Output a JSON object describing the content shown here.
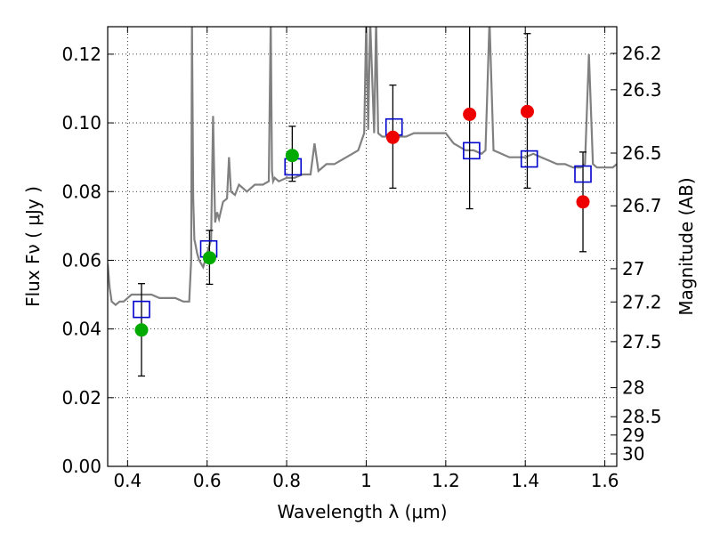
{
  "chart_data": {
    "type": "scatter",
    "xlabel": "Wavelength  λ (μm)",
    "ylabel": "Flux  Fν  ( μJy )",
    "y2label": "Magnitude (AB)",
    "xlim": [
      0.35,
      1.63
    ],
    "ylim": [
      0.0,
      0.128
    ],
    "grid": true,
    "xticks": [
      0.4,
      0.6,
      0.8,
      1.0,
      1.2,
      1.4,
      1.6
    ],
    "xtick_labels": [
      "0.4",
      "0.6",
      "0.8",
      "1",
      "1.2",
      "1.4",
      "1.6"
    ],
    "yticks": [
      0.0,
      0.02,
      0.04,
      0.06,
      0.08,
      0.1,
      0.12
    ],
    "ytick_labels": [
      "0.00",
      "0.02",
      "0.04",
      "0.06",
      "0.08",
      "0.10",
      "0.12"
    ],
    "mag_ticks": [
      {
        "mag": 26.2,
        "label": "26.2"
      },
      {
        "mag": 26.3,
        "label": "26.3"
      },
      {
        "mag": 26.5,
        "label": "26.5"
      },
      {
        "mag": 26.7,
        "label": "26.7"
      },
      {
        "mag": 27.0,
        "label": "27"
      },
      {
        "mag": 27.2,
        "label": "27.2"
      },
      {
        "mag": 27.5,
        "label": "27.5"
      },
      {
        "mag": 28.0,
        "label": "28"
      },
      {
        "mag": 28.5,
        "label": "28.5"
      },
      {
        "mag": 29.0,
        "label": "29"
      },
      {
        "mag": 30.0,
        "label": "30"
      }
    ],
    "model_spectrum": {
      "color": "#808080",
      "x": [
        0.35,
        0.355,
        0.36,
        0.37,
        0.38,
        0.39,
        0.4,
        0.41,
        0.42,
        0.44,
        0.46,
        0.48,
        0.5,
        0.52,
        0.54,
        0.555,
        0.56,
        0.562,
        0.565,
        0.568,
        0.57,
        0.575,
        0.58,
        0.59,
        0.6,
        0.61,
        0.615,
        0.62,
        0.625,
        0.63,
        0.64,
        0.65,
        0.655,
        0.66,
        0.67,
        0.68,
        0.7,
        0.72,
        0.74,
        0.755,
        0.76,
        0.763,
        0.766,
        0.77,
        0.78,
        0.8,
        0.82,
        0.84,
        0.86,
        0.87,
        0.88,
        0.9,
        0.92,
        0.95,
        0.98,
        0.995,
        1.0,
        1.005,
        1.01,
        1.02,
        1.025,
        1.03,
        1.04,
        1.06,
        1.08,
        1.1,
        1.12,
        1.15,
        1.18,
        1.2,
        1.22,
        1.25,
        1.27,
        1.29,
        1.3,
        1.31,
        1.32,
        1.34,
        1.36,
        1.38,
        1.4,
        1.42,
        1.44,
        1.46,
        1.48,
        1.5,
        1.52,
        1.54,
        1.55,
        1.56,
        1.57,
        1.58,
        1.6,
        1.62,
        1.63
      ],
      "y": [
        0.059,
        0.052,
        0.048,
        0.047,
        0.048,
        0.048,
        0.049,
        0.05,
        0.05,
        0.05,
        0.05,
        0.049,
        0.049,
        0.049,
        0.048,
        0.048,
        0.06,
        0.13,
        0.078,
        0.066,
        0.065,
        0.062,
        0.06,
        0.058,
        0.062,
        0.066,
        0.102,
        0.071,
        0.074,
        0.072,
        0.077,
        0.078,
        0.09,
        0.08,
        0.079,
        0.082,
        0.08,
        0.082,
        0.082,
        0.083,
        0.13,
        0.086,
        0.083,
        0.084,
        0.083,
        0.084,
        0.084,
        0.085,
        0.085,
        0.094,
        0.086,
        0.088,
        0.088,
        0.09,
        0.092,
        0.097,
        0.13,
        0.098,
        0.13,
        0.097,
        0.13,
        0.097,
        0.096,
        0.096,
        0.096,
        0.096,
        0.097,
        0.097,
        0.097,
        0.097,
        0.094,
        0.092,
        0.092,
        0.091,
        0.092,
        0.13,
        0.092,
        0.091,
        0.09,
        0.09,
        0.09,
        0.091,
        0.09,
        0.089,
        0.088,
        0.088,
        0.087,
        0.087,
        0.088,
        0.12,
        0.088,
        0.087,
        0.087,
        0.087,
        0.088
      ]
    },
    "series": [
      {
        "name": "",
        "marker": "open-square",
        "color": "#0000cc",
        "x": [
          0.435,
          0.604,
          0.816,
          1.07,
          1.265,
          1.41,
          1.545
        ],
        "y": [
          0.0457,
          0.0633,
          0.0872,
          0.0988,
          0.0919,
          0.0895,
          0.0851
        ]
      },
      {
        "name": "",
        "marker": "filled-circle",
        "color": "#00aa00",
        "x": [
          0.435,
          0.606,
          0.814
        ],
        "y": [
          0.0397,
          0.0607,
          0.0905
        ],
        "yerr_low": [
          0.0263,
          0.053,
          0.083
        ],
        "yerr_high": [
          0.0532,
          0.0687,
          0.099
        ]
      },
      {
        "name": "",
        "marker": "filled-circle",
        "color": "#ee0000",
        "x": [
          1.067,
          1.26,
          1.405,
          1.545
        ],
        "y": [
          0.0958,
          0.1025,
          0.1033,
          0.077
        ],
        "yerr_low": [
          0.081,
          0.075,
          0.081,
          0.0625
        ],
        "yerr_high": [
          0.111,
          0.13,
          0.126,
          0.0915
        ]
      }
    ]
  }
}
